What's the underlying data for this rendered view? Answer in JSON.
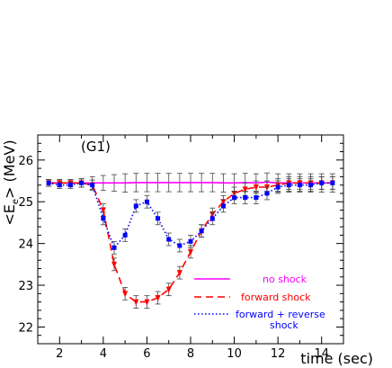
{
  "chart_data": {
    "type": "line",
    "panel_label": "(G1)",
    "xlabel": "time (sec)",
    "ylabel_main": "<E",
    "ylabel_sub": "e",
    "ylabel_tail": "> (MeV)",
    "xlim": [
      1,
      15
    ],
    "ylim": [
      21.6,
      26.6
    ],
    "xticks": [
      2,
      4,
      6,
      8,
      10,
      12,
      14
    ],
    "yticks": [
      22,
      23,
      24,
      25,
      26
    ],
    "series": [
      {
        "name": "no shock",
        "color": "#ff00ff",
        "style": "solid",
        "marker": "none",
        "x": [
          1.5,
          2,
          2.5,
          3,
          3.5,
          4,
          4.5,
          5,
          5.5,
          6,
          6.5,
          7,
          7.5,
          8,
          8.5,
          9,
          9.5,
          10,
          10.5,
          11,
          11.5,
          12,
          12.5,
          13,
          13.5,
          14,
          14.5
        ],
        "y": [
          25.45,
          25.45,
          25.45,
          25.45,
          25.45,
          25.45,
          25.45,
          25.45,
          25.46,
          25.46,
          25.46,
          25.46,
          25.46,
          25.46,
          25.46,
          25.46,
          25.45,
          25.45,
          25.46,
          25.45,
          25.47,
          25.45,
          25.45,
          25.45,
          25.45,
          25.45,
          25.45
        ],
        "err": [
          0.08,
          0.08,
          0.08,
          0.1,
          0.15,
          0.18,
          0.2,
          0.22,
          0.22,
          0.22,
          0.22,
          0.22,
          0.22,
          0.22,
          0.22,
          0.22,
          0.22,
          0.22,
          0.22,
          0.22,
          0.22,
          0.22,
          0.22,
          0.22,
          0.22,
          0.22,
          0.22
        ]
      },
      {
        "name": "forward shock",
        "color": "#ff0000",
        "style": "dashed",
        "marker": "triangle-down",
        "x": [
          1.5,
          2,
          2.5,
          3,
          3.5,
          4,
          4.5,
          5,
          5.5,
          6,
          6.5,
          7,
          7.5,
          8,
          8.5,
          9,
          9.5,
          10,
          10.5,
          11,
          11.5,
          12,
          12.5,
          13,
          13.5,
          14,
          14.5
        ],
        "y": [
          25.45,
          25.45,
          25.45,
          25.45,
          25.4,
          24.8,
          23.5,
          22.8,
          22.6,
          22.6,
          22.7,
          22.9,
          23.3,
          23.8,
          24.3,
          24.7,
          25.0,
          25.2,
          25.3,
          25.35,
          25.35,
          25.4,
          25.45,
          25.45,
          25.45,
          25.45,
          25.45
        ],
        "err": [
          0.08,
          0.08,
          0.08,
          0.1,
          0.12,
          0.15,
          0.15,
          0.15,
          0.15,
          0.15,
          0.15,
          0.15,
          0.15,
          0.15,
          0.15,
          0.15,
          0.15,
          0.15,
          0.15,
          0.15,
          0.15,
          0.15,
          0.15,
          0.15,
          0.15,
          0.15,
          0.15
        ]
      },
      {
        "name": "forward + reverse shock",
        "color": "#0000ff",
        "style": "dotted",
        "marker": "square",
        "x": [
          1.5,
          2,
          2.5,
          3,
          3.5,
          4,
          4.5,
          5,
          5.5,
          6,
          6.5,
          7,
          7.5,
          8,
          8.5,
          9,
          9.5,
          10,
          10.5,
          11,
          11.5,
          12,
          12.5,
          13,
          13.5,
          14,
          14.5
        ],
        "y": [
          25.45,
          25.4,
          25.4,
          25.45,
          25.4,
          24.6,
          23.9,
          24.2,
          24.9,
          25.0,
          24.6,
          24.1,
          23.95,
          24.05,
          24.3,
          24.6,
          24.9,
          25.1,
          25.1,
          25.1,
          25.2,
          25.35,
          25.4,
          25.4,
          25.4,
          25.45,
          25.45
        ],
        "err": [
          0.08,
          0.08,
          0.08,
          0.1,
          0.12,
          0.15,
          0.15,
          0.15,
          0.15,
          0.15,
          0.15,
          0.15,
          0.15,
          0.15,
          0.15,
          0.15,
          0.15,
          0.15,
          0.15,
          0.15,
          0.15,
          0.15,
          0.15,
          0.15,
          0.15,
          0.15,
          0.15
        ]
      }
    ],
    "legend": [
      {
        "label": "no shock",
        "color": "#ff00ff"
      },
      {
        "label": "forward shock",
        "color": "#ff0000"
      },
      {
        "label": "forward + reverse",
        "label2": "shock",
        "color": "#0000ff"
      }
    ]
  }
}
